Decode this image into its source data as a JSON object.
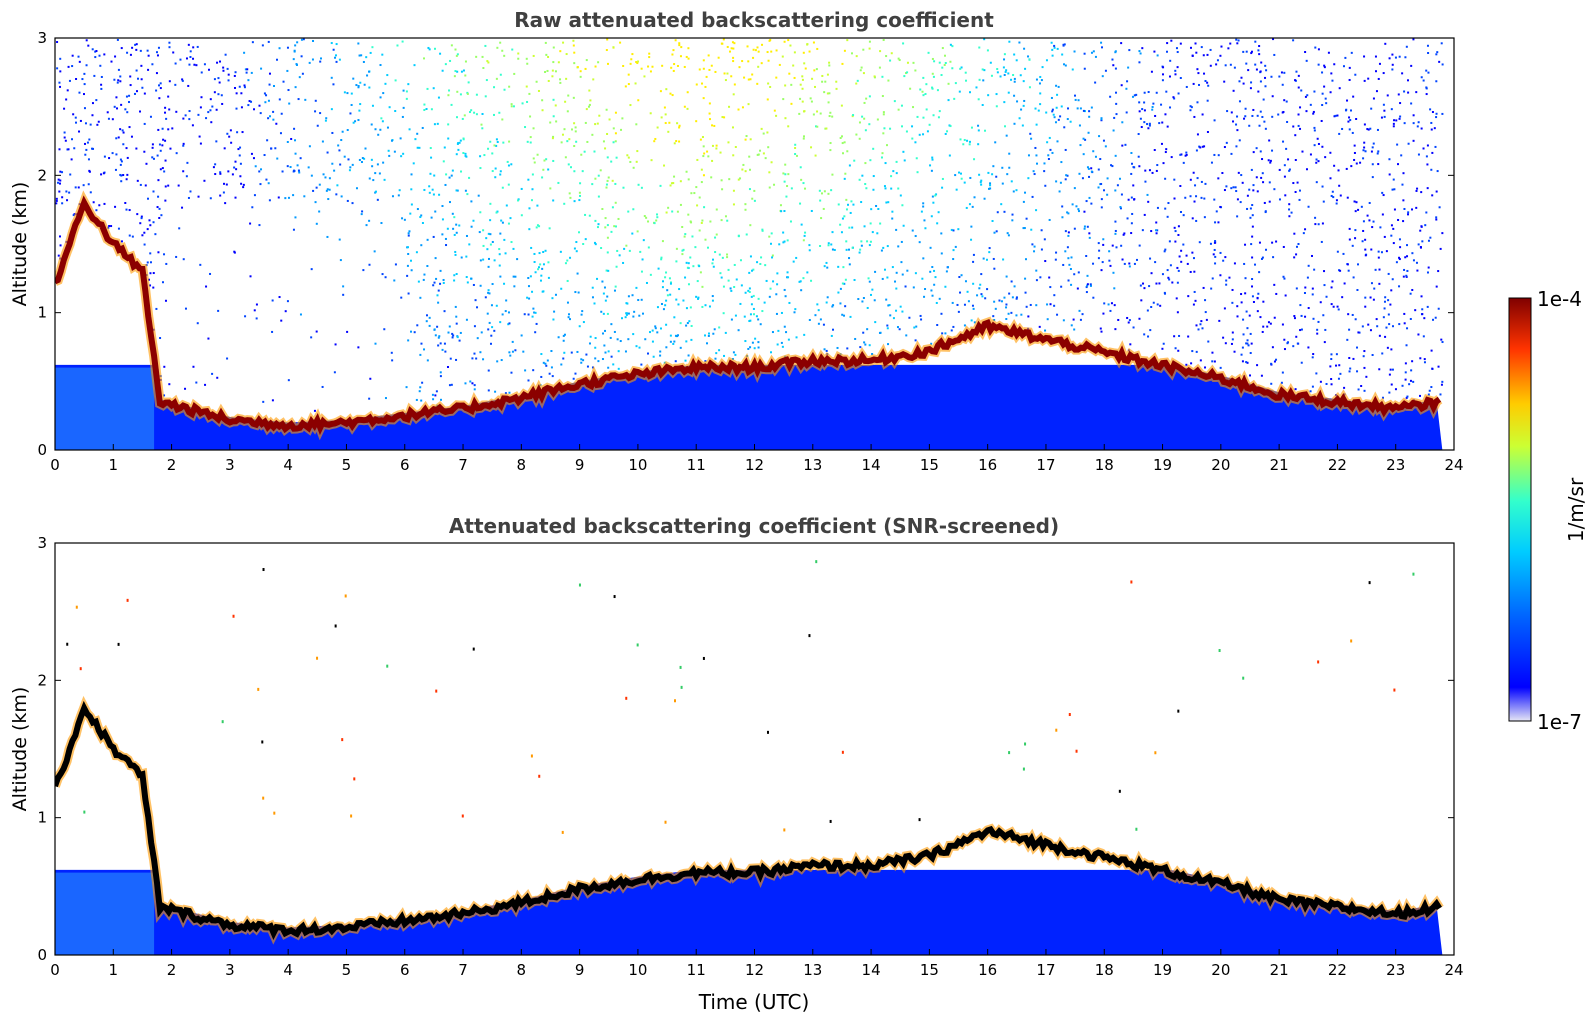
{
  "chart_data": [
    {
      "type": "heatmap",
      "title": "Raw attenuated backscattering coefficient",
      "ylabel": "Altitude (km)",
      "xlabel": "",
      "xlim": [
        0,
        24
      ],
      "ylim": [
        0,
        3
      ],
      "xticks": [
        "0",
        "1",
        "2",
        "3",
        "4",
        "5",
        "6",
        "7",
        "8",
        "9",
        "10",
        "11",
        "12",
        "13",
        "14",
        "15",
        "16",
        "17",
        "18",
        "19",
        "20",
        "21",
        "22",
        "23",
        "24"
      ],
      "yticks": [
        "0",
        "1",
        "2",
        "3"
      ],
      "boundary_layer_top_km": [
        {
          "t": 0.0,
          "z": 1.2
        },
        {
          "t": 0.5,
          "z": 1.8
        },
        {
          "t": 1.0,
          "z": 1.5
        },
        {
          "t": 1.5,
          "z": 1.3
        },
        {
          "t": 1.8,
          "z": 0.35
        },
        {
          "t": 3.0,
          "z": 0.22
        },
        {
          "t": 4.0,
          "z": 0.18
        },
        {
          "t": 5.0,
          "z": 0.2
        },
        {
          "t": 6.0,
          "z": 0.25
        },
        {
          "t": 7.0,
          "z": 0.3
        },
        {
          "t": 8.0,
          "z": 0.38
        },
        {
          "t": 9.0,
          "z": 0.48
        },
        {
          "t": 10.0,
          "z": 0.55
        },
        {
          "t": 11.0,
          "z": 0.6
        },
        {
          "t": 12.0,
          "z": 0.6
        },
        {
          "t": 13.0,
          "z": 0.65
        },
        {
          "t": 14.0,
          "z": 0.65
        },
        {
          "t": 15.0,
          "z": 0.72
        },
        {
          "t": 16.0,
          "z": 0.9
        },
        {
          "t": 20.2,
          "z": 0.5
        },
        {
          "t": 21.0,
          "z": 0.4
        },
        {
          "t": 22.0,
          "z": 0.35
        },
        {
          "t": 23.0,
          "z": 0.3
        },
        {
          "t": 23.8,
          "z": 0.35
        }
      ]
    },
    {
      "type": "heatmap",
      "title": "Attenuated backscattering coefficient (SNR-screened)",
      "ylabel": "Altitude (km)",
      "xlabel": "Time (UTC)",
      "xlim": [
        0,
        24
      ],
      "ylim": [
        0,
        3
      ],
      "xticks": [
        "0",
        "1",
        "2",
        "3",
        "4",
        "5",
        "6",
        "7",
        "8",
        "9",
        "10",
        "11",
        "12",
        "13",
        "14",
        "15",
        "16",
        "17",
        "18",
        "19",
        "20",
        "21",
        "22",
        "23",
        "24"
      ],
      "yticks": [
        "0",
        "1",
        "2",
        "3"
      ]
    }
  ],
  "colorbar": {
    "max_label": "1e-4",
    "min_label": "1e-7",
    "unit_label": "1/m/sr",
    "colors": [
      "#e6e6f5",
      "#0000ff",
      "#0066ff",
      "#00ccff",
      "#33ffcc",
      "#ccff33",
      "#ffcc00",
      "#ff3300",
      "#800000"
    ]
  }
}
